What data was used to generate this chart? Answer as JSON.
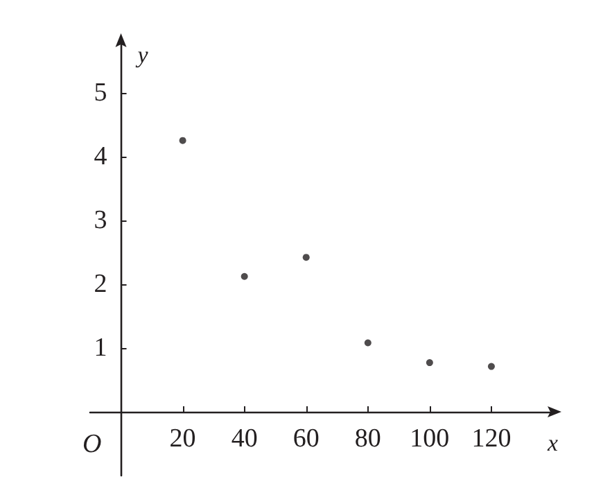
{
  "chart_data": {
    "type": "scatter",
    "xlabel": "x",
    "ylabel": "y",
    "annotations": [
      "O"
    ],
    "x": [
      20,
      40,
      60,
      80,
      100,
      120
    ],
    "values": [
      4.25,
      2.12,
      2.42,
      1.08,
      0.77,
      0.71
    ],
    "color": "#231f20",
    "marker": "circle",
    "grid": false,
    "xlim": [
      -10,
      140
    ],
    "xticks": [
      20,
      40,
      60,
      80,
      100,
      120
    ],
    "ylim": [
      -1,
      5.8
    ],
    "yticks": [
      1,
      2,
      3,
      4,
      5
    ]
  }
}
